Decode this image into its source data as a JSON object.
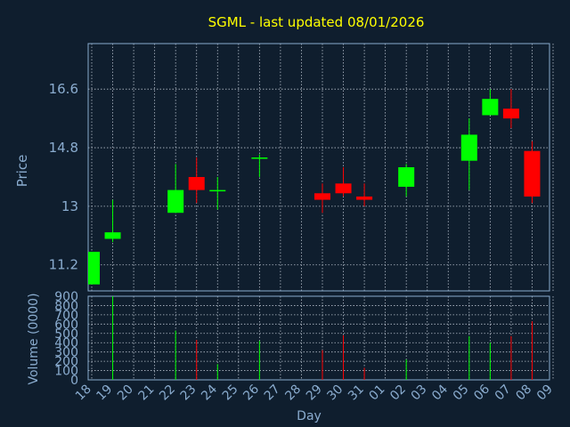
{
  "chart_data": {
    "type": "candlestick",
    "title": "SGML - last updated 08/01/2026",
    "xlabel": "Day",
    "price_ylabel": "Price",
    "volume_ylabel": "Volume (0000)",
    "price_ylim": [
      10.4,
      18.0
    ],
    "price_ticks": [
      "11.2",
      "13",
      "14.8",
      "16.6"
    ],
    "volume_ylim": [
      0,
      900
    ],
    "volume_ticks": [
      "0",
      "100",
      "200",
      "300",
      "400",
      "500",
      "600",
      "700",
      "800",
      "900"
    ],
    "x_ticks": [
      "18",
      "19",
      "20",
      "21",
      "22",
      "23",
      "24",
      "25",
      "26",
      "27",
      "28",
      "29",
      "30",
      "31",
      "01",
      "02",
      "03",
      "04",
      "05",
      "06",
      "07",
      "08",
      "09"
    ],
    "grid": true,
    "colors": {
      "up": "#00ff00",
      "down": "#ff0000",
      "title": "#ffff00",
      "axis_text": "#8aaccf",
      "frame": "#8aaccf",
      "background": "#0f1e2e"
    },
    "candles": [
      {
        "day": "18",
        "open": 10.6,
        "high": 11.6,
        "low": 10.6,
        "close": 11.6,
        "volume": 0
      },
      {
        "day": "19",
        "open": 12.0,
        "high": 13.2,
        "low": 11.9,
        "close": 12.2,
        "volume": 900
      },
      {
        "day": "22",
        "open": 12.8,
        "high": 14.3,
        "low": 12.8,
        "close": 13.5,
        "volume": 530
      },
      {
        "day": "23",
        "open": 13.9,
        "high": 14.5,
        "low": 13.1,
        "close": 13.5,
        "volume": 430
      },
      {
        "day": "24",
        "open": 13.5,
        "high": 13.9,
        "low": 12.9,
        "close": 13.5,
        "volume": 170
      },
      {
        "day": "26",
        "open": 14.5,
        "high": 14.6,
        "low": 13.9,
        "close": 14.5,
        "volume": 420
      },
      {
        "day": "29",
        "open": 13.4,
        "high": 13.7,
        "low": 12.8,
        "close": 13.2,
        "volume": 320
      },
      {
        "day": "30",
        "open": 13.7,
        "high": 14.2,
        "low": 13.3,
        "close": 13.4,
        "volume": 480
      },
      {
        "day": "31",
        "open": 13.3,
        "high": 13.7,
        "low": 13.0,
        "close": 13.2,
        "volume": 130
      },
      {
        "day": "02",
        "open": 13.6,
        "high": 14.3,
        "low": 13.3,
        "close": 14.2,
        "volume": 220
      },
      {
        "day": "05",
        "open": 14.4,
        "high": 15.7,
        "low": 13.5,
        "close": 15.2,
        "volume": 470
      },
      {
        "day": "06",
        "open": 15.8,
        "high": 16.6,
        "low": 15.8,
        "close": 16.3,
        "volume": 400
      },
      {
        "day": "07",
        "open": 16.0,
        "high": 16.6,
        "low": 15.4,
        "close": 15.7,
        "volume": 470
      },
      {
        "day": "08",
        "open": 14.7,
        "high": 15.0,
        "low": 13.1,
        "close": 13.3,
        "volume": 630
      }
    ]
  }
}
